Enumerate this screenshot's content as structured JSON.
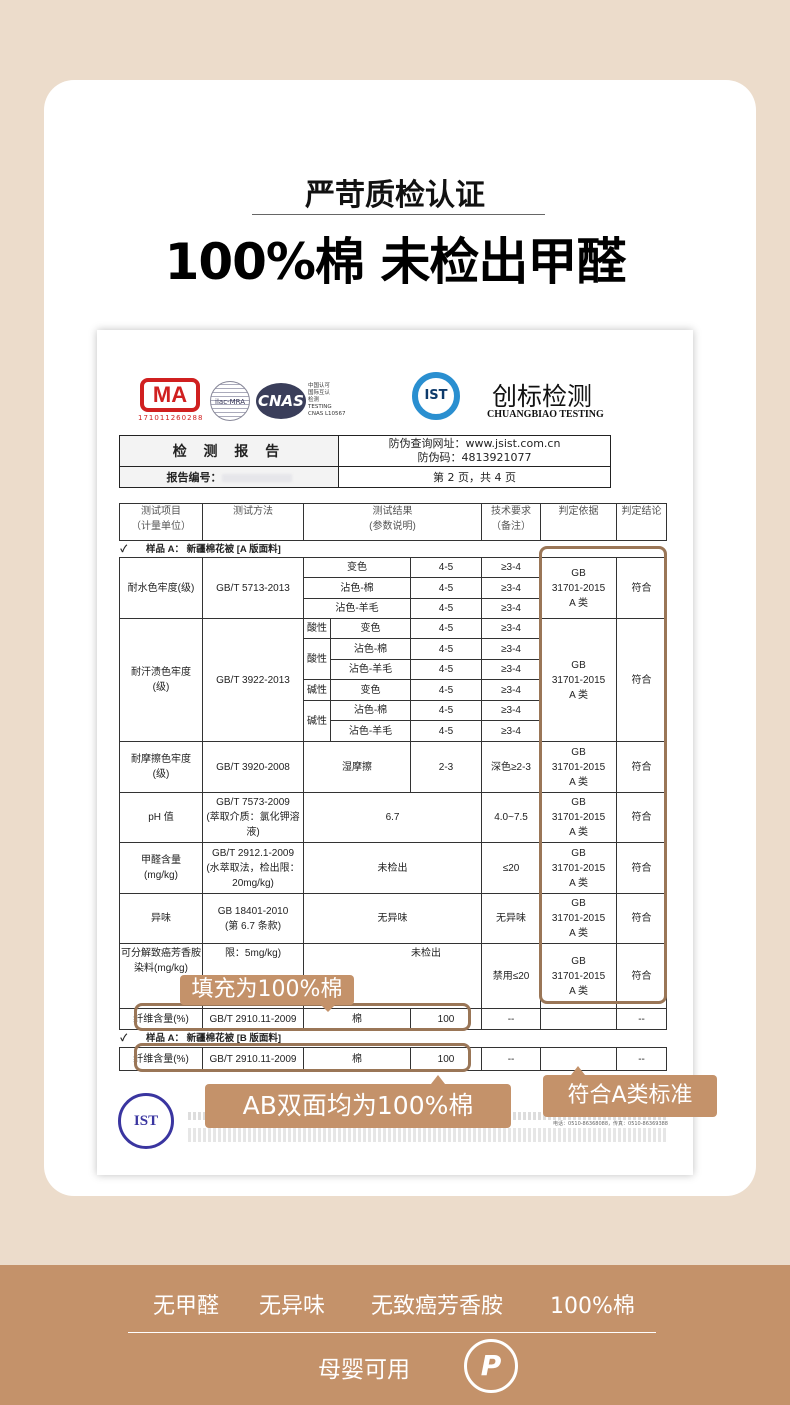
{
  "header": {
    "subtitle": "严苛质检认证",
    "title": "100%棉 未检出甲醛"
  },
  "report": {
    "logos": {
      "cma": "MA",
      "cma_number": "171011260288",
      "ilac": "ilac-MRA",
      "cnas": "CNAS",
      "cnas_text": [
        "中国认可",
        "国际互认",
        "检测",
        "TESTING",
        "CNAS L10567"
      ],
      "ist": "IST",
      "brand_cn": "创标检测",
      "brand_en": "CHUANGBIAO TESTING"
    },
    "title": "检 测 报 告",
    "query_url": "防伪查询网址：www.jsist.com.cn",
    "code": "防伪码：4813921077",
    "report_no_label": "报告编号：",
    "page": "第 2 页，共 4 页",
    "columns": [
      "测试项目\n（计量单位）",
      "测试方法",
      "测试结果\n(参数说明)",
      "技术要求\n（备注）",
      "判定依据",
      "判定结论"
    ],
    "sample_a": "✓　　样品 A：  新疆棉花被   [A 版面料]",
    "sample_b": "✓　　样品 A：  新疆棉花被   [B 版面料]",
    "basis": "GB\n31701-2015\nA 类",
    "pass": "符合",
    "water": {
      "item": "耐水色牢度(级)",
      "method": "GB/T 5713-2013",
      "rows": [
        [
          "变色",
          "4-5",
          "≥3-4"
        ],
        [
          "沾色-棉",
          "4-5",
          "≥3-4"
        ],
        [
          "沾色-羊毛",
          "4-5",
          "≥3-4"
        ]
      ]
    },
    "sweat": {
      "item": "耐汗渍色牢度\n(级)",
      "method": "GB/T 3922-2013",
      "acid": "酸性",
      "alkali": "碱性",
      "rows": [
        [
          "变色",
          "4-5",
          "≥3-4"
        ],
        [
          "沾色-棉",
          "4-5",
          "≥3-4"
        ],
        [
          "沾色-羊毛",
          "4-5",
          "≥3-4"
        ],
        [
          "变色",
          "4-5",
          "≥3-4"
        ],
        [
          "沾色-棉",
          "4-5",
          "≥3-4"
        ],
        [
          "沾色-羊毛",
          "4-5",
          "≥3-4"
        ]
      ]
    },
    "rub": {
      "item": "耐摩擦色牢度\n(级)",
      "method": "GB/T 3920-2008",
      "cond": "湿摩擦",
      "result": "2-3",
      "req": "深色≥2-3"
    },
    "ph": {
      "item": "pH 值",
      "method": "GB/T 7573-2009\n(萃取介质：氯化钾溶液)",
      "result": "6.7",
      "req": "4.0~7.5"
    },
    "formaldehyde": {
      "item": "甲醛含量\n(mg/kg)",
      "method": "GB/T 2912.1-2009\n(水萃取法，检出限：20mg/kg)",
      "result": "未检出",
      "req": "≤20"
    },
    "odor": {
      "item": "异味",
      "method": "GB 18401-2010\n(第 6.7 条款)",
      "result": "无异味",
      "req": "无异味"
    },
    "amine": {
      "item": "可分解致癌芳香胺染料(mg/kg)",
      "method": "限：5mg/kg)",
      "result": "未检出",
      "req": "禁用≤20"
    },
    "fiber": {
      "item": "纤维含量(%)",
      "method": "GB/T 2910.11-2009",
      "fiber": "棉",
      "value": "100",
      "req": "--",
      "pass": "--"
    },
    "stamp": "IST",
    "footer": "电话：0510-86368088，传真：0510-86369388"
  },
  "callouts": {
    "filling": "填充为100%棉",
    "standard": "符合A类标准",
    "both_sides": "AB双面均为100%棉"
  },
  "features": [
    "无甲醛",
    "无异味",
    "无致癌芳香胺",
    "100%棉"
  ],
  "bottom": {
    "label": "母婴可用",
    "icon": "p-logo-icon"
  },
  "colors": {
    "accent": "#c4926a",
    "outline": "#9a7657",
    "background": "#ecdccb"
  }
}
